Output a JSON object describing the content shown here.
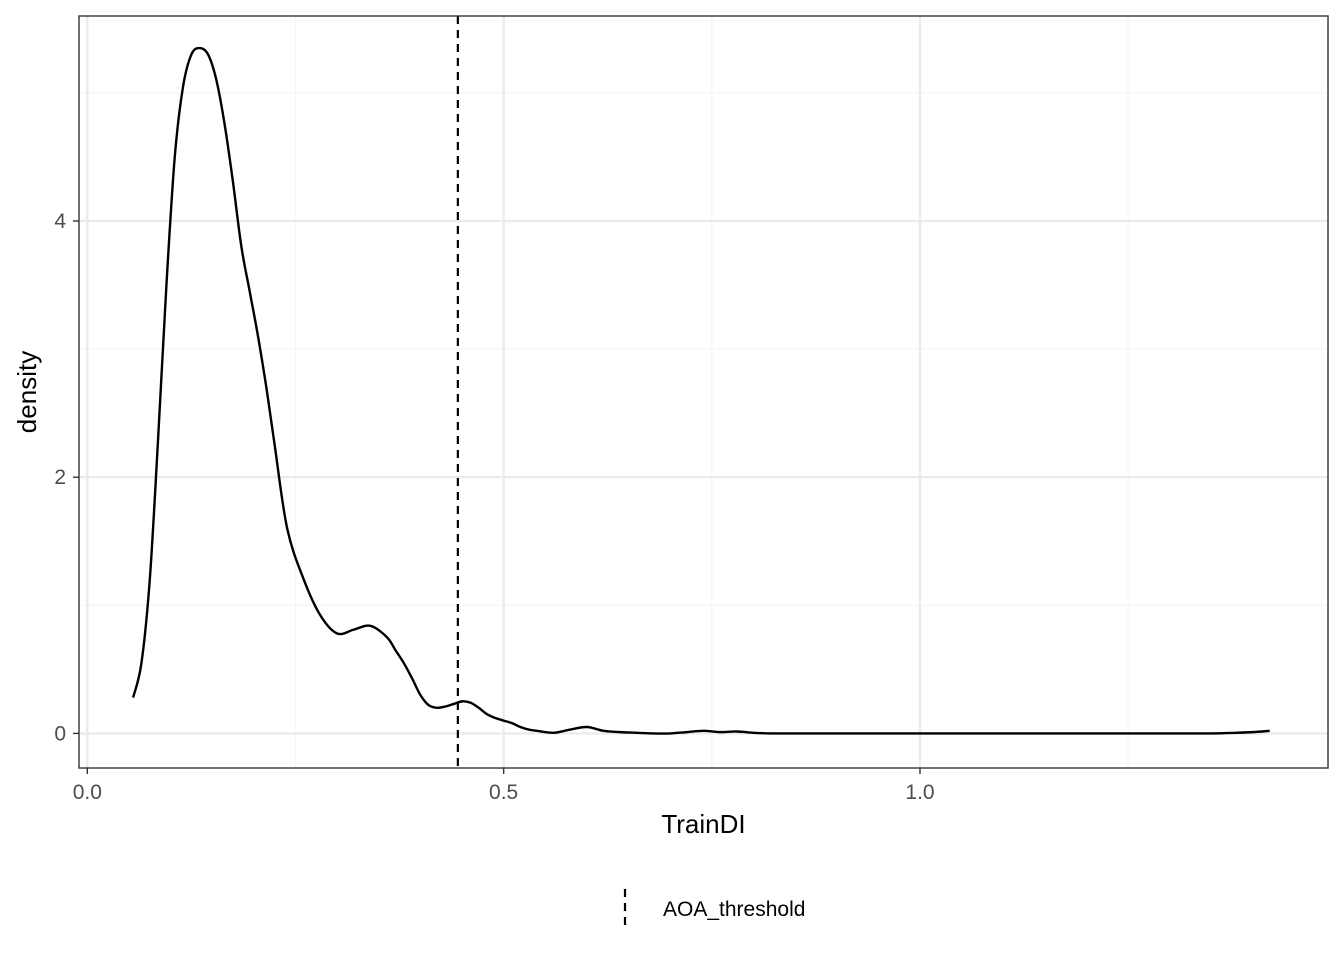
{
  "chart_data": {
    "type": "line",
    "xlabel": "TrainDI",
    "ylabel": "density",
    "xlim": [
      -0.01,
      1.49
    ],
    "ylim": [
      -0.27,
      5.6
    ],
    "x_ticks": [
      0.0,
      0.5,
      1.0
    ],
    "x_tick_labels": [
      "0.0",
      "0.5",
      "1.0"
    ],
    "x_minor_ticks": [
      0.25,
      0.75,
      1.25
    ],
    "y_ticks": [
      0,
      2,
      4
    ],
    "y_tick_labels": [
      "0",
      "2",
      "4"
    ],
    "y_minor_ticks": [
      1,
      3,
      5
    ],
    "grid": true,
    "series": [
      {
        "style": "solid",
        "color": "#000000",
        "x": [
          0.055,
          0.065,
          0.075,
          0.085,
          0.095,
          0.105,
          0.115,
          0.125,
          0.135,
          0.145,
          0.155,
          0.165,
          0.175,
          0.185,
          0.195,
          0.205,
          0.215,
          0.225,
          0.24,
          0.26,
          0.28,
          0.3,
          0.32,
          0.34,
          0.36,
          0.37,
          0.38,
          0.39,
          0.4,
          0.41,
          0.42,
          0.43,
          0.44,
          0.45,
          0.46,
          0.47,
          0.48,
          0.49,
          0.5,
          0.51,
          0.52,
          0.53,
          0.54,
          0.56,
          0.58,
          0.6,
          0.62,
          0.64,
          0.66,
          0.68,
          0.7,
          0.72,
          0.74,
          0.76,
          0.78,
          0.8,
          0.82,
          0.84,
          0.86,
          0.88,
          0.9,
          0.92,
          0.94,
          0.96,
          0.98,
          1.0,
          1.02,
          1.04,
          1.06,
          1.08,
          1.1,
          1.15,
          1.2,
          1.25,
          1.3,
          1.35,
          1.38,
          1.4,
          1.42
        ],
        "y": [
          0.28,
          0.55,
          1.2,
          2.3,
          3.5,
          4.5,
          5.05,
          5.3,
          5.35,
          5.3,
          5.1,
          4.75,
          4.3,
          3.8,
          3.45,
          3.1,
          2.7,
          2.25,
          1.6,
          1.2,
          0.92,
          0.78,
          0.81,
          0.84,
          0.75,
          0.65,
          0.55,
          0.43,
          0.3,
          0.22,
          0.2,
          0.21,
          0.23,
          0.25,
          0.24,
          0.2,
          0.15,
          0.12,
          0.1,
          0.08,
          0.05,
          0.03,
          0.02,
          0.005,
          0.03,
          0.05,
          0.02,
          0.01,
          0.005,
          0.0,
          0.0,
          0.01,
          0.02,
          0.01,
          0.015,
          0.005,
          0.0,
          0.0,
          0.0,
          0.0,
          0.0,
          0.0,
          0.0,
          0.0,
          0.0,
          0.0,
          0.0,
          0.0,
          0.0,
          0.0,
          0.0,
          0.0,
          0.0,
          0.0,
          0.0,
          0.0,
          0.005,
          0.01,
          0.02
        ]
      }
    ],
    "vlines": [
      {
        "x": 0.445,
        "style": "dashed",
        "color": "#000000",
        "label": "AOA_threshold"
      }
    ],
    "legend": {
      "position": "bottom",
      "entries": [
        {
          "label": "AOA_threshold",
          "style": "dashed"
        }
      ]
    }
  },
  "colors": {
    "grid_major": "#ebebeb",
    "grid_minor": "#f5f5f5",
    "panel_border": "#333333",
    "tick_text": "#4d4d4d",
    "line": "#000000"
  }
}
